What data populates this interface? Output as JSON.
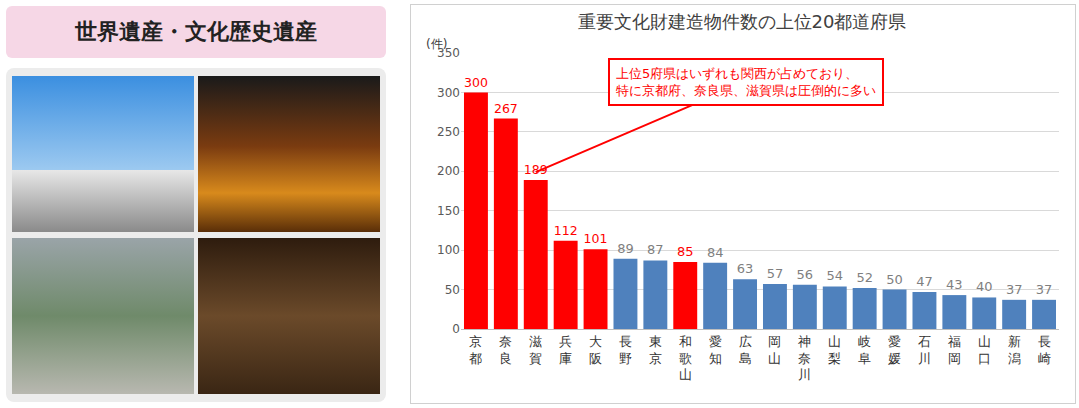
{
  "panel": {
    "title": "世界遺産・文化歴史遺産"
  },
  "chart_data": {
    "type": "bar",
    "title": "重要文化財建造物件数の上位20都道府県",
    "y_label": "(件)",
    "categories": [
      "京都",
      "奈良",
      "滋賀",
      "兵庫",
      "大阪",
      "長野",
      "東京",
      "和歌山",
      "愛知",
      "広島",
      "岡山",
      "神奈川",
      "山梨",
      "岐阜",
      "愛媛",
      "石川",
      "福岡",
      "山口",
      "新潟",
      "長崎"
    ],
    "values": [
      300,
      267,
      189,
      112,
      101,
      89,
      87,
      85,
      84,
      63,
      57,
      56,
      54,
      52,
      50,
      47,
      43,
      40,
      37,
      37
    ],
    "colors": [
      "#ff0000",
      "#ff0000",
      "#ff0000",
      "#ff0000",
      "#ff0000",
      "#4f81bd",
      "#4f81bd",
      "#ff0000",
      "#4f81bd",
      "#4f81bd",
      "#4f81bd",
      "#4f81bd",
      "#4f81bd",
      "#4f81bd",
      "#4f81bd",
      "#4f81bd",
      "#4f81bd",
      "#4f81bd",
      "#4f81bd",
      "#4f81bd"
    ],
    "ylim": [
      0,
      350
    ],
    "yticks": [
      0,
      50,
      100,
      150,
      200,
      250,
      300,
      350
    ],
    "grid": true,
    "data_labels": true,
    "annotations": [
      {
        "text": "上位5府県はいずれも関西が占めており、\n特に京都府、奈良県、滋賀県は圧倒的に多い",
        "category": "滋賀",
        "value": 189
      }
    ]
  }
}
